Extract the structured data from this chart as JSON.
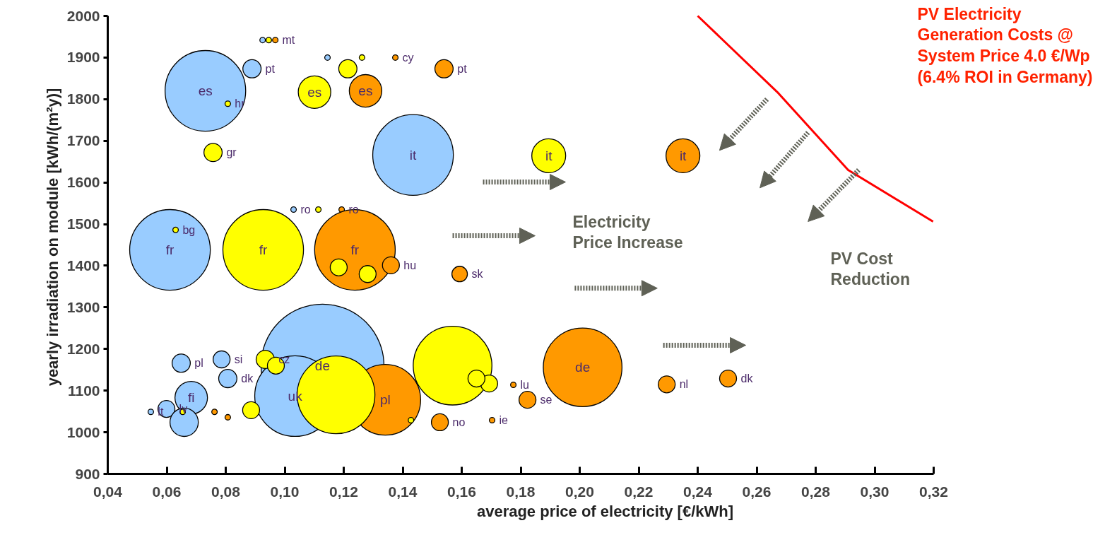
{
  "chart_data": {
    "type": "bubble",
    "xlabel": "average price of electricity [€/kWh]",
    "ylabel": "yearly irradiation on module [kWh/(m²y)]",
    "xlim": [
      0.04,
      0.32
    ],
    "ylim": [
      900,
      2000
    ],
    "xticks": [
      {
        "value": 0.04,
        "label": "0,04"
      },
      {
        "value": 0.06,
        "label": "0,06"
      },
      {
        "value": 0.08,
        "label": "0,08"
      },
      {
        "value": 0.1,
        "label": "0,10"
      },
      {
        "value": 0.12,
        "label": "0,12"
      },
      {
        "value": 0.14,
        "label": "0,14"
      },
      {
        "value": 0.16,
        "label": "0,16"
      },
      {
        "value": 0.18,
        "label": "0,18"
      },
      {
        "value": 0.2,
        "label": "0,20"
      },
      {
        "value": 0.22,
        "label": "0,22"
      },
      {
        "value": 0.24,
        "label": "0,24"
      },
      {
        "value": 0.26,
        "label": "0,26"
      },
      {
        "value": 0.28,
        "label": "0,28"
      },
      {
        "value": 0.3,
        "label": "0,30"
      },
      {
        "value": 0.32,
        "label": "0,32"
      }
    ],
    "yticks": [
      900,
      1000,
      1100,
      1200,
      1300,
      1400,
      1500,
      1600,
      1700,
      1800,
      1900,
      2000
    ],
    "marker": "circle",
    "series": [
      {
        "color": "#99ccff",
        "x": [
          0.0925,
          0.1145,
          0.0889,
          0.0731,
          0.1435,
          0.103,
          0.0611,
          0.1128,
          0.0649,
          0.0786,
          0.0807,
          0.0683,
          0.0599,
          0.0546,
          0.0659,
          0.1035
        ],
        "values": [
          1942,
          1900,
          1873,
          1820,
          1666,
          1535,
          1438,
          1160,
          1166,
          1175,
          1129,
          1083,
          1056,
          1049,
          1024,
          1087
        ],
        "sizes": [
          0.002,
          0.002,
          0.022,
          0.43,
          0.43,
          0.002,
          0.43,
          1,
          0.022,
          0.019,
          0.022,
          0.07,
          0.019,
          0.002,
          0.053,
          0.43
        ]
      },
      {
        "color": "#ff9900",
        "x": [
          0.0968,
          0.1375,
          0.154,
          0.1274,
          0.235,
          0.1193,
          0.1238,
          0.136,
          0.1593,
          0.201,
          0.2295,
          0.2503,
          0.1823,
          0.1526,
          0.1703,
          0.1341,
          0.0762,
          0.0807,
          0.1775
        ],
        "values": [
          1942,
          1900,
          1873,
          1820,
          1664,
          1535,
          1438,
          1401,
          1380,
          1156,
          1115,
          1129,
          1078,
          1024,
          1029,
          1078,
          1049,
          1036,
          1114
        ],
        "sizes": [
          0.002,
          0.002,
          0.022,
          0.07,
          0.076,
          0.002,
          0.43,
          0.019,
          0.016,
          0.41,
          0.019,
          0.019,
          0.019,
          0.019,
          0.002,
          0.33,
          0.002,
          0.002,
          0.002
        ]
      },
      {
        "color": "#ffff00",
        "x": [
          0.0946,
          0.1262,
          0.1214,
          0.1101,
          0.0807,
          0.0757,
          0.1895,
          0.1114,
          0.063,
          0.0927,
          0.1183,
          0.1281,
          0.0934,
          0.097,
          0.0654,
          0.0886,
          0.1174,
          0.1569,
          0.1693,
          0.165,
          0.1428
        ],
        "values": [
          1942,
          1900,
          1873,
          1817,
          1789,
          1672,
          1664,
          1535,
          1486,
          1438,
          1396,
          1380,
          1175,
          1160,
          1049,
          1053,
          1090,
          1160,
          1117,
          1129,
          1029
        ],
        "sizes": [
          0.002,
          0.002,
          0.022,
          0.07,
          0.002,
          0.022,
          0.076,
          0.002,
          0.002,
          0.43,
          0.019,
          0.019,
          0.022,
          0.019,
          0.002,
          0.019,
          0.4,
          0.41,
          0.019,
          0.019,
          0.002
        ]
      },
      {
        "type": "line",
        "marker": "none",
        "color": "#ff0000",
        "x": [
          0.24,
          0.267,
          0.291,
          0.3198
        ],
        "values": [
          2000,
          1817,
          1630,
          1506
        ]
      }
    ],
    "annotations": [
      "PV Electricity\nGeneration Costs @\nSystem Price 4.0 €/Wp\n(6.4% ROI in Germany)",
      "Electricity\nPrice Increase",
      "PV Cost\nReduction",
      {
        "text": "es",
        "x": 0.0731,
        "y": 1820
      },
      {
        "text": "es",
        "x": 0.1101,
        "y": 1817
      },
      {
        "text": "es",
        "x": 0.1274,
        "y": 1820
      },
      {
        "text": "pt",
        "x": 0.0889,
        "y": 1873
      },
      {
        "text": "pt",
        "x": 0.154,
        "y": 1873
      },
      {
        "text": "cy",
        "x": 0.1375,
        "y": 1900
      },
      {
        "text": "mt",
        "x": 0.0968,
        "y": 1942
      },
      {
        "text": "gr",
        "x": 0.0757,
        "y": 1672
      },
      {
        "text": "hr",
        "x": 0.0807,
        "y": 1789
      },
      {
        "text": "it",
        "x": 0.1435,
        "y": 1666
      },
      {
        "text": "it",
        "x": 0.1895,
        "y": 1664
      },
      {
        "text": "it",
        "x": 0.235,
        "y": 1664
      },
      {
        "text": "ro",
        "x": 0.103,
        "y": 1535
      },
      {
        "text": "ro",
        "x": 0.1193,
        "y": 1535
      },
      {
        "text": "bg",
        "x": 0.063,
        "y": 1486
      },
      {
        "text": "fr",
        "x": 0.0611,
        "y": 1438
      },
      {
        "text": "fr",
        "x": 0.0927,
        "y": 1438
      },
      {
        "text": "fr",
        "x": 0.1238,
        "y": 1438
      },
      {
        "text": "hu",
        "x": 0.136,
        "y": 1401
      },
      {
        "text": "sk",
        "x": 0.1593,
        "y": 1380
      },
      {
        "text": "de",
        "x": 0.1128,
        "y": 1160
      },
      {
        "text": "de",
        "x": 0.201,
        "y": 1156
      },
      {
        "text": "si",
        "x": 0.0786,
        "y": 1175
      },
      {
        "text": "pl",
        "x": 0.0649,
        "y": 1166
      },
      {
        "text": "pl",
        "x": 0.1341,
        "y": 1078
      },
      {
        "text": "cz",
        "x": 0.0934,
        "y": 1175
      },
      {
        "text": "dk",
        "x": 0.0807,
        "y": 1129
      },
      {
        "text": "dk",
        "x": 0.2503,
        "y": 1129
      },
      {
        "text": "fi",
        "x": 0.0683,
        "y": 1083
      },
      {
        "text": "lv",
        "x": 0.0599,
        "y": 1056
      },
      {
        "text": "lt",
        "x": 0.0546,
        "y": 1049
      },
      {
        "text": "uk",
        "x": 0.1035,
        "y": 1087
      },
      {
        "text": "nl",
        "x": 0.2295,
        "y": 1115
      },
      {
        "text": "se",
        "x": 0.1823,
        "y": 1078
      },
      {
        "text": "lu",
        "x": 0.1775,
        "y": 1114
      },
      {
        "text": "no",
        "x": 0.1526,
        "y": 1024
      },
      {
        "text": "ie",
        "x": 0.1703,
        "y": 1029
      }
    ]
  }
}
